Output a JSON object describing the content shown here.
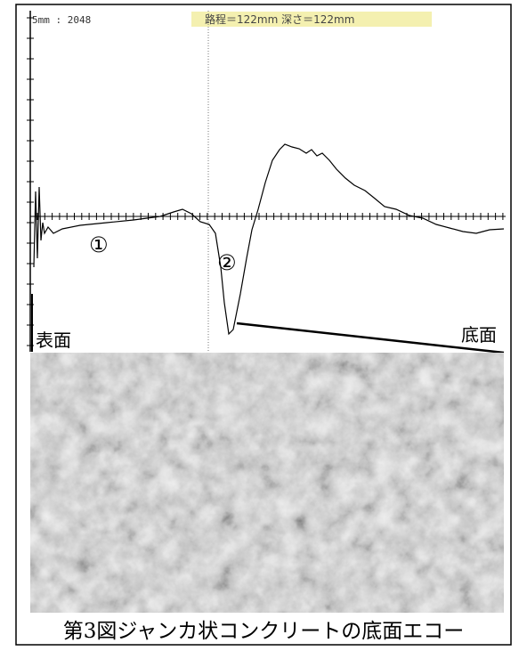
{
  "scope": {
    "range_label": "5mm : 2048",
    "header": "路程＝122mm 深さ＝122mm"
  },
  "labels": {
    "echo_1": "①",
    "echo_2": "②",
    "surface": "表面",
    "bottom": "底面"
  },
  "caption": "第3図ジャンカ状コンクリートの底面エコー"
}
